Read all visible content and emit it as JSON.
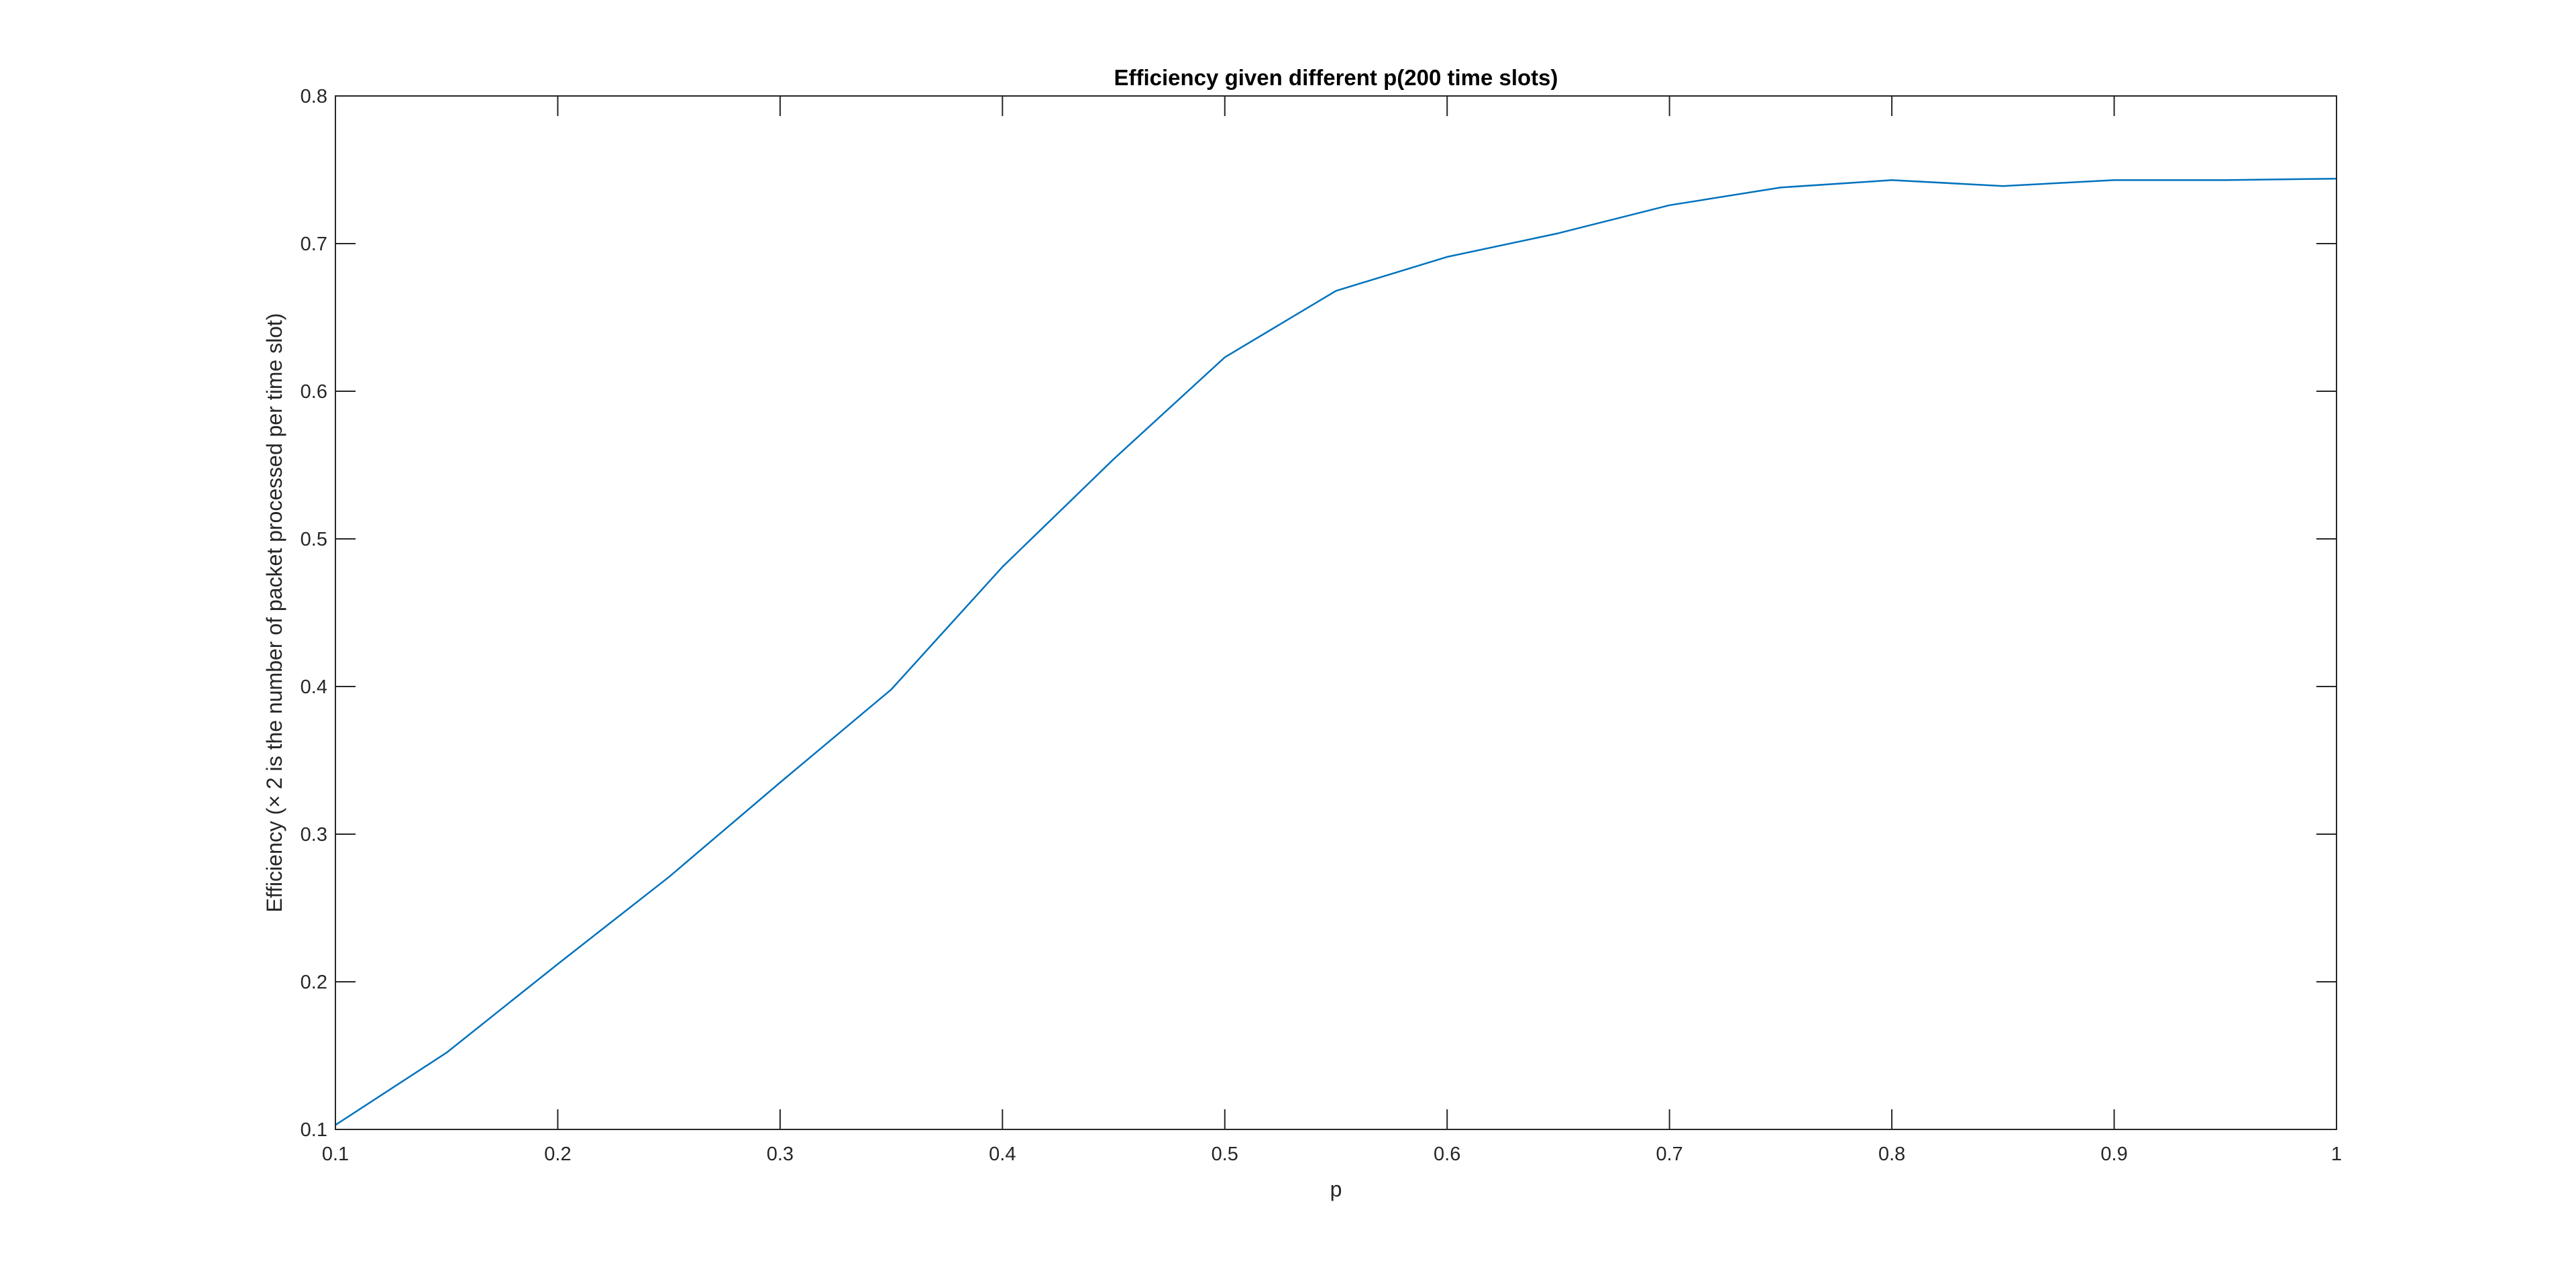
{
  "chart_data": {
    "type": "line",
    "title": "Efficiency given different p(200 time slots)",
    "xlabel": "p",
    "ylabel": "Efficiency (× 2 is the number of packet processed per time slot)",
    "xlim": [
      0.1,
      1
    ],
    "ylim": [
      0.1,
      0.8
    ],
    "xticks": [
      "0.1",
      "0.2",
      "0.3",
      "0.4",
      "0.5",
      "0.6",
      "0.7",
      "0.8",
      "0.9",
      "1"
    ],
    "yticks": [
      "0.1",
      "0.2",
      "0.3",
      "0.4",
      "0.5",
      "0.6",
      "0.7",
      "0.8"
    ],
    "grid": false,
    "series": [
      {
        "color": "#0072BD",
        "x": [
          0.1,
          0.15,
          0.2,
          0.25,
          0.3,
          0.35,
          0.4,
          0.45,
          0.5,
          0.55,
          0.6,
          0.65,
          0.7,
          0.75,
          0.8,
          0.85,
          0.9,
          0.95,
          1.0
        ],
        "y": [
          0.103,
          0.152,
          0.212,
          0.271,
          0.335,
          0.398,
          0.481,
          0.554,
          0.623,
          0.668,
          0.691,
          0.707,
          0.726,
          0.738,
          0.743,
          0.739,
          0.743,
          0.743,
          0.744
        ]
      }
    ]
  }
}
